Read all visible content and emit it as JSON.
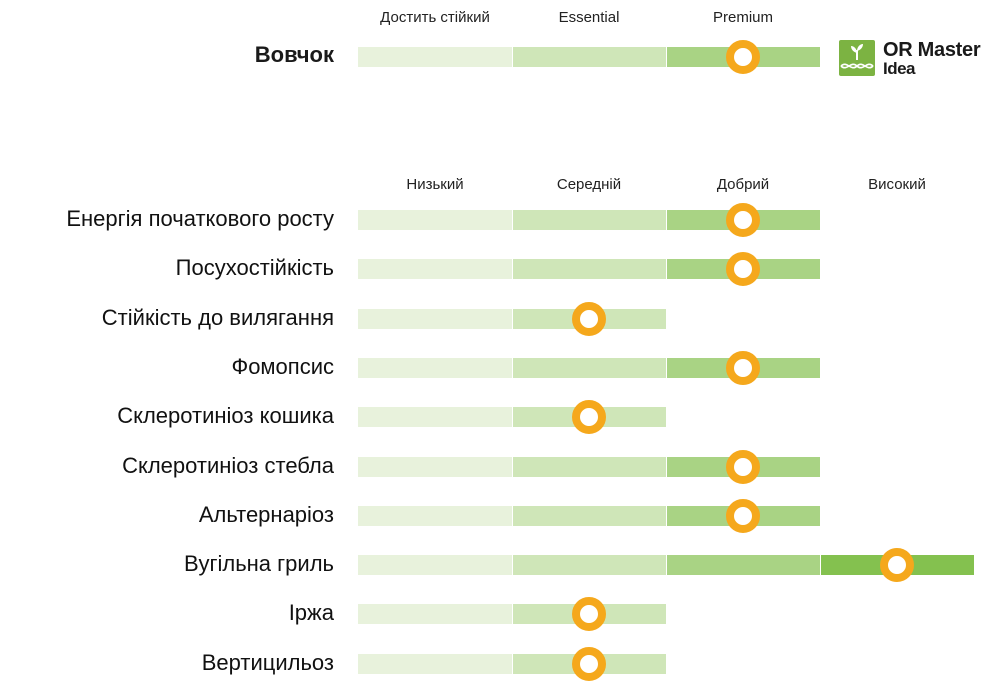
{
  "top_scale": [
    "Достить стійкий",
    "Essential",
    "Premium"
  ],
  "product": {
    "name": "Вовчок",
    "level": 3,
    "of": 3
  },
  "logo": {
    "line1": "OR Master",
    "line2": "Idea",
    "icon": "seedling-dna-icon",
    "color": "#7cb342"
  },
  "scale": [
    "Низький",
    "Середній",
    "Добрий",
    "Високий"
  ],
  "traits": [
    {
      "label": "Енергія початкового росту",
      "level": 3
    },
    {
      "label": "Посухостійкість",
      "level": 3
    },
    {
      "label": "Стійкість до вилягання",
      "level": 2
    },
    {
      "label": "Фомопсис",
      "level": 3
    },
    {
      "label": "Склеротиніоз кошика",
      "level": 2
    },
    {
      "label": "Склеротиніоз стебла",
      "level": 3
    },
    {
      "label": "Альтернаріоз",
      "level": 3
    },
    {
      "label": "Вугільна гриль",
      "level": 4
    },
    {
      "label": "Іржа",
      "level": 2
    },
    {
      "label": "Вертицильоз",
      "level": 2
    }
  ],
  "colors": {
    "seg1": "#e8f2dc",
    "seg2": "#cfe6b8",
    "seg3": "#a9d384",
    "seg4": "#84c14f",
    "marker": "#f5a81c"
  }
}
